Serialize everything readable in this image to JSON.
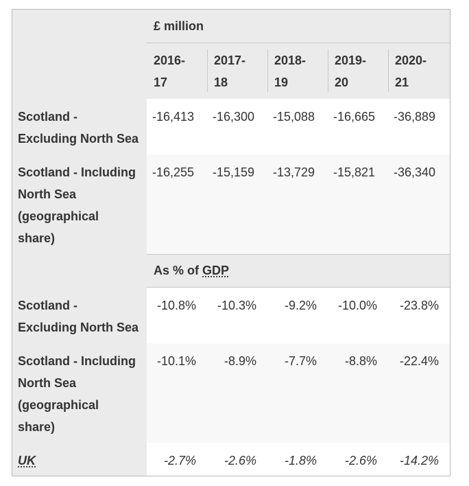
{
  "table": {
    "units_header_1": "£ million",
    "years": [
      "2016-17",
      "2017-18",
      "2018-19",
      "2019-20",
      "2020-21"
    ],
    "year_lines": [
      [
        "2016-",
        "17"
      ],
      [
        "2017-",
        "18"
      ],
      [
        "2018-",
        "19"
      ],
      [
        "2019-",
        "20"
      ],
      [
        "2020-",
        "21"
      ]
    ],
    "units_header_2_prefix": "As % of ",
    "units_header_2_abbr": "GDP",
    "million_rows": [
      {
        "label_lines": [
          "Scotland -",
          "Excluding North Sea"
        ],
        "values": [
          "-16,413",
          "-16,300",
          "-15,088",
          "-16,665",
          "-36,889"
        ]
      },
      {
        "label_lines": [
          "Scotland - Including",
          "North Sea",
          "(geographical",
          "share)"
        ],
        "values": [
          "-16,255",
          "-15,159",
          "-13,729",
          "-15,821",
          "-36,340"
        ]
      }
    ],
    "percent_rows": [
      {
        "label_lines": [
          "Scotland -",
          "Excluding North Sea"
        ],
        "values": [
          "-10.8%",
          "-10.3%",
          "-9.2%",
          "-10.0%",
          "-23.8%"
        ]
      },
      {
        "label_lines": [
          "Scotland - Including",
          "North Sea",
          "(geographical",
          "share)"
        ],
        "values": [
          "-10.1%",
          "-8.9%",
          "-7.7%",
          "-8.8%",
          "-22.4%"
        ]
      },
      {
        "label": "UK",
        "values": [
          "-2.7%",
          "-2.6%",
          "-1.8%",
          "-2.6%",
          "-14.2%"
        ]
      }
    ]
  }
}
